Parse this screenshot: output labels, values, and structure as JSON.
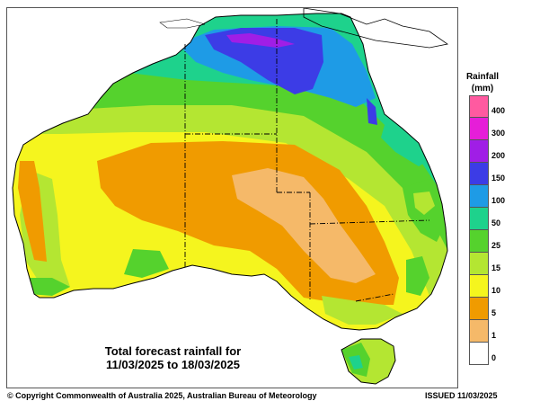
{
  "map": {
    "caption_line1": "Total forecast rainfall for",
    "caption_line2": "11/03/2025 to 18/03/2025"
  },
  "legend": {
    "title_line1": "Rainfall",
    "title_line2": "(mm)",
    "items": [
      {
        "label": "400",
        "color": "#ff5aa0"
      },
      {
        "label": "300",
        "color": "#e61ed8"
      },
      {
        "label": "200",
        "color": "#a01ee6"
      },
      {
        "label": "150",
        "color": "#3c3ce6"
      },
      {
        "label": "100",
        "color": "#1e9be6"
      },
      {
        "label": "50",
        "color": "#1ed28c"
      },
      {
        "label": "25",
        "color": "#55d22d"
      },
      {
        "label": "15",
        "color": "#b4e632"
      },
      {
        "label": "10",
        "color": "#f5f51e"
      },
      {
        "label": "5",
        "color": "#f09b00"
      },
      {
        "label": "1",
        "color": "#f5b969"
      },
      {
        "label": "0",
        "color": "#ffffff"
      }
    ]
  },
  "footer": {
    "copyright": "© Copyright Commonwealth of Australia 2025, Australian Bureau of Meteorology",
    "issued": "ISSUED 11/03/2025"
  }
}
